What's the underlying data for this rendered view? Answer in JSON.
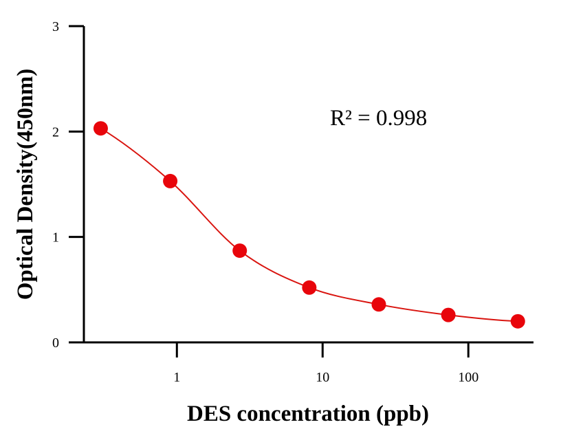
{
  "chart_data": {
    "type": "scatter",
    "xlabel": "DES concentration (ppb)",
    "ylabel": "Optical Density(450nm)",
    "x_scale": "log",
    "x_ticks": [
      1,
      10,
      100
    ],
    "x_tick_labels": [
      "1",
      "10",
      "100"
    ],
    "xlim": [
      0.23,
      280
    ],
    "y_ticks": [
      0,
      1,
      2,
      3
    ],
    "y_tick_labels": [
      "0",
      "1",
      "2",
      "3"
    ],
    "ylim": [
      0,
      3
    ],
    "grid": false,
    "series": [
      {
        "x": [
          0.3,
          0.9,
          2.7,
          8.1,
          24.3,
          72.9,
          218.7
        ],
        "y": [
          2.03,
          1.53,
          0.87,
          0.52,
          0.36,
          0.26,
          0.2
        ],
        "marker_color": "#e8050b",
        "line_color": "#d9140f",
        "fit": "four-parameter logistic curve"
      }
    ],
    "annotation": "R² = 0.998"
  }
}
